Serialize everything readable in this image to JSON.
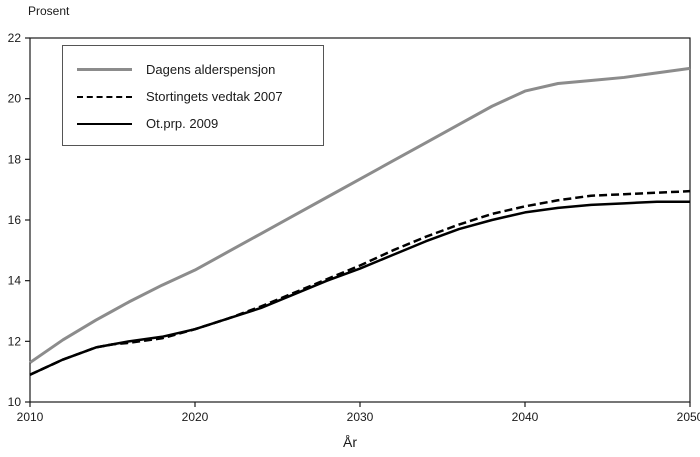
{
  "chart_data": {
    "type": "line",
    "title": "",
    "ylabel": "Prosent",
    "xlabel": "År",
    "xlim": [
      2010,
      2050
    ],
    "ylim": [
      10,
      22
    ],
    "x_ticks": [
      2010,
      2020,
      2030,
      2040,
      2050
    ],
    "y_ticks": [
      10,
      12,
      14,
      16,
      18,
      20,
      22
    ],
    "grid": false,
    "legend_position": "top-left",
    "x": [
      2010,
      2012,
      2014,
      2015,
      2016,
      2018,
      2020,
      2022,
      2024,
      2026,
      2028,
      2030,
      2032,
      2034,
      2036,
      2038,
      2040,
      2042,
      2044,
      2046,
      2048,
      2050
    ],
    "series": [
      {
        "name": "Dagens alderspensjon",
        "color": "#8c8c8c",
        "dash": "",
        "width": 3,
        "values": [
          11.3,
          12.05,
          12.7,
          13.0,
          13.3,
          13.85,
          14.35,
          14.95,
          15.55,
          16.15,
          16.75,
          17.35,
          17.95,
          18.55,
          19.15,
          19.75,
          20.25,
          20.5,
          20.6,
          20.7,
          20.85,
          21.0
        ]
      },
      {
        "name": "Stortingets vedtak 2007",
        "color": "#000000",
        "dash": "8 4",
        "width": 2.5,
        "values": [
          10.9,
          11.4,
          11.8,
          11.9,
          11.95,
          12.1,
          12.4,
          12.75,
          13.15,
          13.6,
          14.05,
          14.5,
          15.0,
          15.45,
          15.85,
          16.2,
          16.45,
          16.65,
          16.8,
          16.85,
          16.9,
          16.95
        ]
      },
      {
        "name": "Ot.prp. 2009",
        "color": "#000000",
        "dash": "",
        "width": 2.5,
        "values": [
          10.9,
          11.4,
          11.8,
          11.9,
          12.0,
          12.15,
          12.4,
          12.75,
          13.1,
          13.55,
          14.0,
          14.4,
          14.85,
          15.3,
          15.7,
          16.0,
          16.25,
          16.4,
          16.5,
          16.55,
          16.6,
          16.6
        ]
      }
    ]
  }
}
